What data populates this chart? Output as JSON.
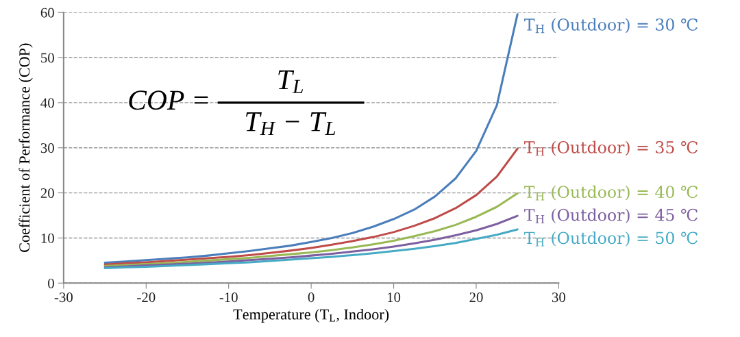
{
  "chart_data": {
    "type": "line",
    "xlabel": "Temperature (T$_{L}$, Indoor)",
    "ylabel": "Coefficient of Performance (COP)",
    "x": [
      -25,
      -22.5,
      -20,
      -17.5,
      -15,
      -12.5,
      -10,
      -7.5,
      -5,
      -2.5,
      0,
      2.5,
      5,
      7.5,
      10,
      12.5,
      15,
      17.5,
      20,
      22.5,
      25
    ],
    "series": [
      {
        "name": "T$_{H}$ (Outdoor) = 30 ℃",
        "color": "#4a7ebb",
        "values": [
          4.5,
          4.8,
          5.1,
          5.4,
          5.7,
          6.1,
          6.6,
          7.1,
          7.7,
          8.3,
          9.1,
          10.0,
          11.1,
          12.5,
          14.2,
          16.3,
          19.2,
          23.2,
          29.3,
          39.4,
          59.6
        ]
      },
      {
        "name": "T$_{H}$ (Outdoor) = 35 ℃",
        "color": "#be4b48",
        "values": [
          4.1,
          4.4,
          4.6,
          4.9,
          5.2,
          5.5,
          5.8,
          6.2,
          6.7,
          7.2,
          7.8,
          8.5,
          9.3,
          10.2,
          11.3,
          12.7,
          14.4,
          16.6,
          19.5,
          23.6,
          29.8
        ]
      },
      {
        "name": "T$_{H}$ (Outdoor) = 40 ℃",
        "color": "#98b954",
        "values": [
          3.8,
          4.0,
          4.2,
          4.4,
          4.7,
          5.0,
          5.3,
          5.6,
          6.0,
          6.4,
          6.8,
          7.3,
          7.9,
          8.6,
          9.4,
          10.4,
          11.5,
          12.9,
          14.7,
          16.9,
          19.9
        ]
      },
      {
        "name": "T$_{H}$ (Outdoor) = 45 ℃",
        "color": "#7d5fa0",
        "values": [
          3.5,
          3.7,
          3.9,
          4.1,
          4.3,
          4.5,
          4.8,
          5.1,
          5.4,
          5.7,
          6.1,
          6.5,
          7.0,
          7.5,
          8.1,
          8.8,
          9.6,
          10.6,
          11.7,
          13.1,
          14.9
        ]
      },
      {
        "name": "T$_{H}$ (Outdoor) = 50 ℃",
        "color": "#46aac5",
        "values": [
          3.3,
          3.5,
          3.6,
          3.8,
          4.0,
          4.2,
          4.4,
          4.6,
          4.9,
          5.2,
          5.5,
          5.8,
          6.2,
          6.6,
          7.1,
          7.6,
          8.2,
          8.9,
          9.8,
          10.7,
          11.9
        ]
      }
    ],
    "annotations": [
      "COP =",
      "T$_{L}$",
      "T$_{H}$ − T$_{L}$"
    ],
    "xlim": [
      -30,
      30
    ],
    "xticks": [
      -30,
      -20,
      -10,
      0,
      10,
      20,
      30
    ],
    "ylim": [
      0,
      60
    ],
    "yticks": [
      0,
      10,
      20,
      30,
      40,
      50,
      60
    ],
    "grid": "y",
    "line_style": "solid",
    "marker": "none",
    "legend": false
  }
}
